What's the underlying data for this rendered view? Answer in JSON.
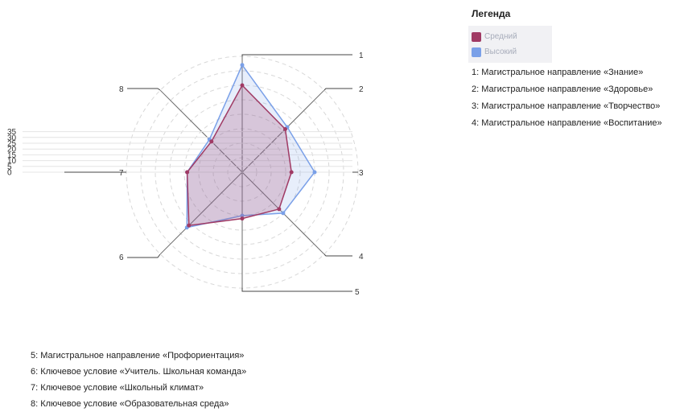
{
  "chart_data": {
    "type": "radar",
    "categories": [
      "1",
      "2",
      "3",
      "4",
      "5",
      "6",
      "7",
      "8"
    ],
    "series": [
      {
        "name": "Средний",
        "color": "#a03a64",
        "values": [
          30,
          21,
          17,
          18,
          16,
          26,
          19,
          15
        ]
      },
      {
        "name": "Высокий",
        "color": "#7aa0e8",
        "values": [
          37,
          22,
          25,
          20,
          15,
          27,
          19,
          16
        ]
      }
    ],
    "scale_ticks": [
      "0",
      "5",
      "10",
      "15",
      "20",
      "25",
      "30",
      "35"
    ],
    "rlim": [
      0,
      40
    ],
    "grid": true,
    "legend_position": "top-right"
  },
  "legend": {
    "title": "Легенда",
    "items": [
      {
        "label": "Средний",
        "color": "#a03a64"
      },
      {
        "label": "Высокий",
        "color": "#7aa0e8"
      }
    ]
  },
  "axis_notes": [
    "1: Магистральное направление «Знание»",
    "2: Магистральное направление «Здоровье»",
    "3: Магистральное направление «Творчество»",
    "4: Магистральное направление «Воспитание»",
    "5: Магистральное направление «Профориентация»",
    "6: Ключевое условие «Учитель. Школьная команда»",
    "7: Ключевое условие «Школьный климат»",
    "8: Ключевое условие «Образовательная среда»"
  ]
}
